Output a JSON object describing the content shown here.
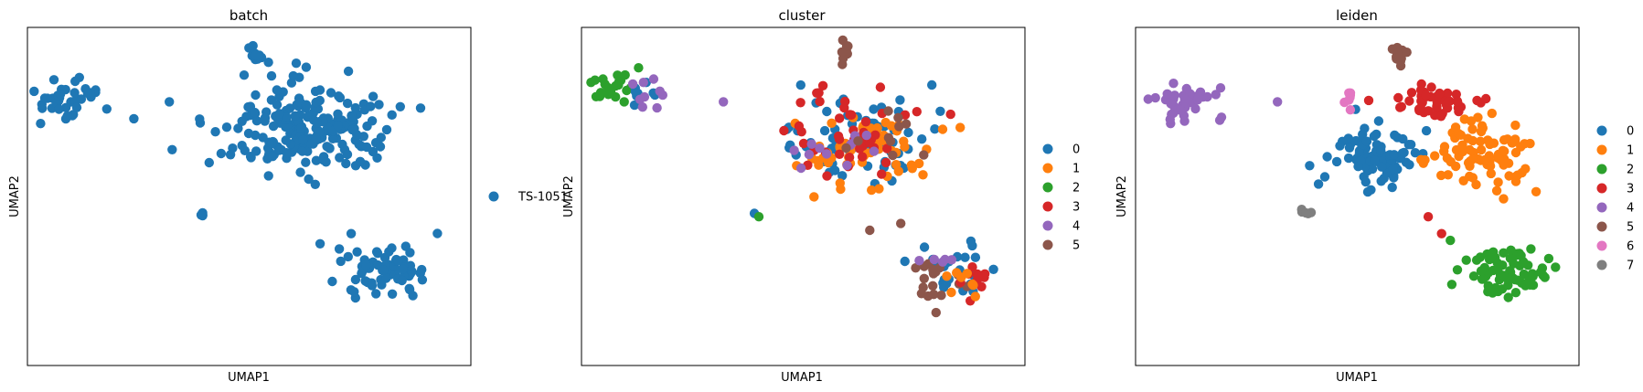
{
  "figure": {
    "background": "#ffffff"
  },
  "chart_data": [
    {
      "type": "scatter",
      "title": "batch",
      "xlabel": "UMAP1",
      "ylabel": "UMAP2",
      "ticks": false,
      "grid": false,
      "legend_placement": "right",
      "legend": [
        {
          "label": "TS-1051",
          "color": "#1f77b4"
        }
      ],
      "clusters": [
        {
          "category": "TS-1051",
          "color": "#1f77b4",
          "center": [
            1.05,
            7.8
          ],
          "spread": [
            0.8,
            0.6
          ],
          "n": 40
        },
        {
          "category": "TS-1051",
          "color": "#1f77b4",
          "center": [
            6.25,
            7.0
          ],
          "spread": [
            1.8,
            1.3
          ],
          "n": 210
        },
        {
          "category": "TS-1051",
          "color": "#1f77b4",
          "center": [
            5.2,
            9.1
          ],
          "spread": [
            0.18,
            0.35
          ],
          "n": 10
        },
        {
          "category": "TS-1051",
          "color": "#1f77b4",
          "center": [
            8.1,
            2.8
          ],
          "spread": [
            1.0,
            0.75
          ],
          "n": 70
        },
        {
          "category": "TS-1051",
          "color": "#1f77b4",
          "center": [
            3.9,
            4.5
          ],
          "spread": [
            0.12,
            0.1
          ],
          "n": 4
        }
      ],
      "points": [
        {
          "x": 3.2,
          "y": 7.8,
          "category": "TS-1051"
        },
        {
          "x": 4.1,
          "y": 6.0,
          "category": "TS-1051"
        },
        {
          "x": 6.6,
          "y": 3.6,
          "category": "TS-1051"
        },
        {
          "x": 7.3,
          "y": 3.9,
          "category": "TS-1051"
        },
        {
          "x": 2.4,
          "y": 7.3,
          "category": "TS-1051"
        }
      ]
    },
    {
      "type": "scatter",
      "title": "cluster",
      "xlabel": "UMAP1",
      "ylabel": "UMAP2",
      "ticks": false,
      "grid": false,
      "legend_placement": "right",
      "legend": [
        {
          "label": "0",
          "color": "#1f77b4"
        },
        {
          "label": "1",
          "color": "#ff7f0e"
        },
        {
          "label": "2",
          "color": "#2ca02c"
        },
        {
          "label": "3",
          "color": "#d62728"
        },
        {
          "label": "4",
          "color": "#9467bd"
        },
        {
          "label": "5",
          "color": "#8c564b"
        }
      ],
      "clusters": [
        {
          "category": "2",
          "color": "#2ca02c",
          "center": [
            0.8,
            8.2
          ],
          "spread": [
            0.6,
            0.6
          ],
          "n": 22
        },
        {
          "category": "0",
          "color": "#1f77b4",
          "center": [
            1.3,
            8.0
          ],
          "spread": [
            0.5,
            0.45
          ],
          "n": 8
        },
        {
          "category": "4",
          "color": "#9467bd",
          "center": [
            1.5,
            8.1
          ],
          "spread": [
            0.5,
            0.4
          ],
          "n": 9
        },
        {
          "category": "0",
          "color": "#1f77b4",
          "center": [
            6.4,
            6.7
          ],
          "spread": [
            1.7,
            1.2
          ],
          "n": 75
        },
        {
          "category": "1",
          "color": "#ff7f0e",
          "center": [
            6.3,
            6.5
          ],
          "spread": [
            1.6,
            1.2
          ],
          "n": 65
        },
        {
          "category": "3",
          "color": "#d62728",
          "center": [
            6.2,
            6.9
          ],
          "spread": [
            1.6,
            1.3
          ],
          "n": 45
        },
        {
          "category": "4",
          "color": "#9467bd",
          "center": [
            5.4,
            6.3
          ],
          "spread": [
            1.2,
            1.1
          ],
          "n": 12
        },
        {
          "category": "5",
          "color": "#8c564b",
          "center": [
            6.6,
            6.8
          ],
          "spread": [
            1.5,
            1.2
          ],
          "n": 10
        },
        {
          "category": "0",
          "color": "#1f77b4",
          "center": [
            8.4,
            2.8
          ],
          "spread": [
            0.9,
            0.7
          ],
          "n": 25
        },
        {
          "category": "5",
          "color": "#8c564b",
          "center": [
            7.9,
            2.6
          ],
          "spread": [
            0.6,
            0.7
          ],
          "n": 18
        },
        {
          "category": "3",
          "color": "#d62728",
          "center": [
            8.9,
            2.6
          ],
          "spread": [
            0.6,
            0.5
          ],
          "n": 10
        },
        {
          "category": "1",
          "color": "#ff7f0e",
          "center": [
            8.6,
            2.6
          ],
          "spread": [
            0.6,
            0.5
          ],
          "n": 8
        },
        {
          "category": "4",
          "color": "#9467bd",
          "center": [
            8.0,
            3.2
          ],
          "spread": [
            0.5,
            0.5
          ],
          "n": 5
        },
        {
          "category": "5",
          "color": "#8c564b",
          "center": [
            5.9,
            9.2
          ],
          "spread": [
            0.15,
            0.3
          ],
          "n": 8
        }
      ],
      "points": [
        {
          "x": 3.2,
          "y": 7.8,
          "category": "4"
        },
        {
          "x": 6.5,
          "y": 4.0,
          "category": "5"
        },
        {
          "x": 7.2,
          "y": 4.2,
          "category": "5"
        },
        {
          "x": 3.9,
          "y": 4.5,
          "category": "0"
        },
        {
          "x": 4.0,
          "y": 4.4,
          "category": "2"
        }
      ]
    },
    {
      "type": "scatter",
      "title": "leiden",
      "xlabel": "UMAP1",
      "ylabel": "UMAP2",
      "ticks": false,
      "grid": false,
      "legend_placement": "right",
      "legend": [
        {
          "label": "0",
          "color": "#1f77b4"
        },
        {
          "label": "1",
          "color": "#ff7f0e"
        },
        {
          "label": "2",
          "color": "#2ca02c"
        },
        {
          "label": "3",
          "color": "#d62728"
        },
        {
          "label": "4",
          "color": "#9467bd"
        },
        {
          "label": "5",
          "color": "#8c564b"
        },
        {
          "label": "6",
          "color": "#e377c2"
        },
        {
          "label": "7",
          "color": "#7f7f7f"
        }
      ],
      "clusters": [
        {
          "category": "4",
          "color": "#9467bd",
          "center": [
            1.1,
            7.8
          ],
          "spread": [
            0.8,
            0.6
          ],
          "n": 40
        },
        {
          "category": "0",
          "color": "#1f77b4",
          "center": [
            5.4,
            6.2
          ],
          "spread": [
            1.0,
            0.95
          ],
          "n": 90
        },
        {
          "category": "1",
          "color": "#ff7f0e",
          "center": [
            7.8,
            6.3
          ],
          "spread": [
            1.0,
            1.0
          ],
          "n": 85
        },
        {
          "category": "3",
          "color": "#d62728",
          "center": [
            6.8,
            7.8
          ],
          "spread": [
            1.0,
            0.4
          ],
          "n": 45
        },
        {
          "category": "2",
          "color": "#2ca02c",
          "center": [
            8.4,
            2.8
          ],
          "spread": [
            0.9,
            0.7
          ],
          "n": 70
        },
        {
          "category": "5",
          "color": "#8c564b",
          "center": [
            5.95,
            9.15
          ],
          "spread": [
            0.18,
            0.3
          ],
          "n": 12
        },
        {
          "category": "6",
          "color": "#e377c2",
          "center": [
            4.8,
            7.9
          ],
          "spread": [
            0.08,
            0.22
          ],
          "n": 7
        },
        {
          "category": "7",
          "color": "#7f7f7f",
          "center": [
            3.85,
            4.55
          ],
          "spread": [
            0.12,
            0.1
          ],
          "n": 5
        }
      ],
      "points": [
        {
          "x": 3.2,
          "y": 7.8,
          "category": "4"
        },
        {
          "x": 6.6,
          "y": 4.4,
          "category": "3"
        },
        {
          "x": 6.9,
          "y": 3.9,
          "category": "3"
        },
        {
          "x": 7.1,
          "y": 3.7,
          "category": "2"
        }
      ]
    }
  ]
}
